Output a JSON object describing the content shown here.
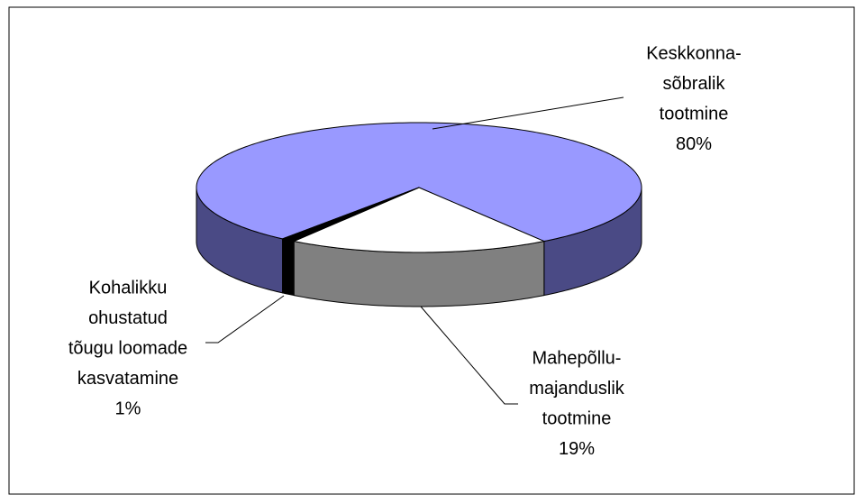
{
  "chart_data": {
    "type": "pie3d",
    "categories": [
      [
        "Keskkonna-",
        "sõbralik",
        "tootmine"
      ],
      [
        "Mahepõllu-",
        "majanduslik",
        "tootmine"
      ],
      [
        "Kohalikku",
        "ohustatud",
        "tõugu loomade",
        "kasvatamine"
      ]
    ],
    "values": [
      80,
      19,
      1
    ],
    "value_labels": [
      "80%",
      "19%",
      "1%"
    ],
    "colors": [
      "#9999ff",
      "#ffffff",
      "#000000"
    ],
    "side_colors": [
      "#4a4a85",
      "#808080",
      "#000000"
    ]
  }
}
